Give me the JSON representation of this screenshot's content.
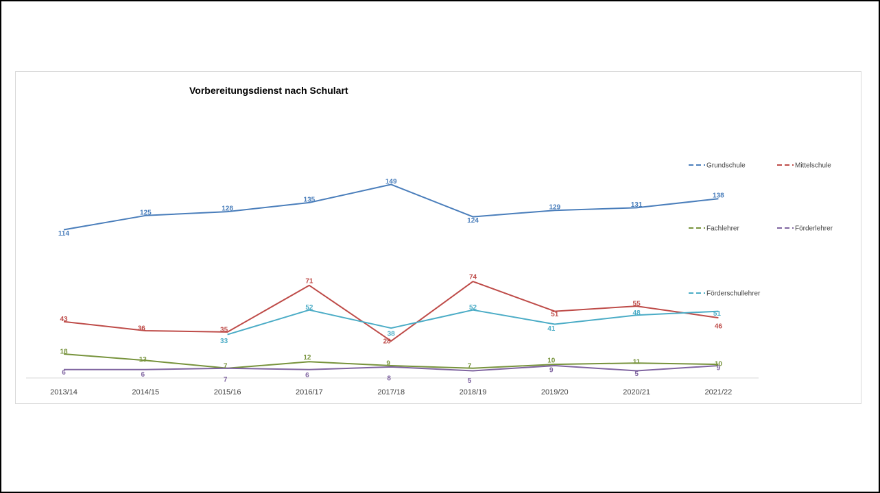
{
  "chart_data": {
    "type": "line",
    "title": "Vorbereitungsdienst nach Schulart",
    "xlabel": "",
    "ylabel": "",
    "categories": [
      "2013/14",
      "2014/15",
      "2015/16",
      "2016/17",
      "2017/18",
      "2018/19",
      "2019/20",
      "2020/21",
      "2021/22"
    ],
    "ylim": [
      0,
      160
    ],
    "grid": false,
    "legend_position": "right",
    "series": [
      {
        "name": "Grundschule",
        "color": "#4a7ebb",
        "values": [
          114,
          125,
          128,
          135,
          149,
          124,
          129,
          131,
          138
        ]
      },
      {
        "name": "Mittelschule",
        "color": "#be4b48",
        "values": [
          43,
          36,
          35,
          71,
          28,
          74,
          51,
          55,
          46
        ]
      },
      {
        "name": "Förderschullehrer",
        "color": "#4bacc6",
        "values": [
          null,
          null,
          33,
          52,
          38,
          52,
          41,
          48,
          51
        ]
      },
      {
        "name": "Fachlehrer",
        "color": "#77933c",
        "values": [
          18,
          13,
          7,
          12,
          9,
          7,
          10,
          11,
          10
        ]
      },
      {
        "name": "Förderlehrer",
        "color": "#7f64a0",
        "values": [
          6,
          6,
          7,
          6,
          8,
          5,
          9,
          5,
          9
        ]
      }
    ]
  }
}
